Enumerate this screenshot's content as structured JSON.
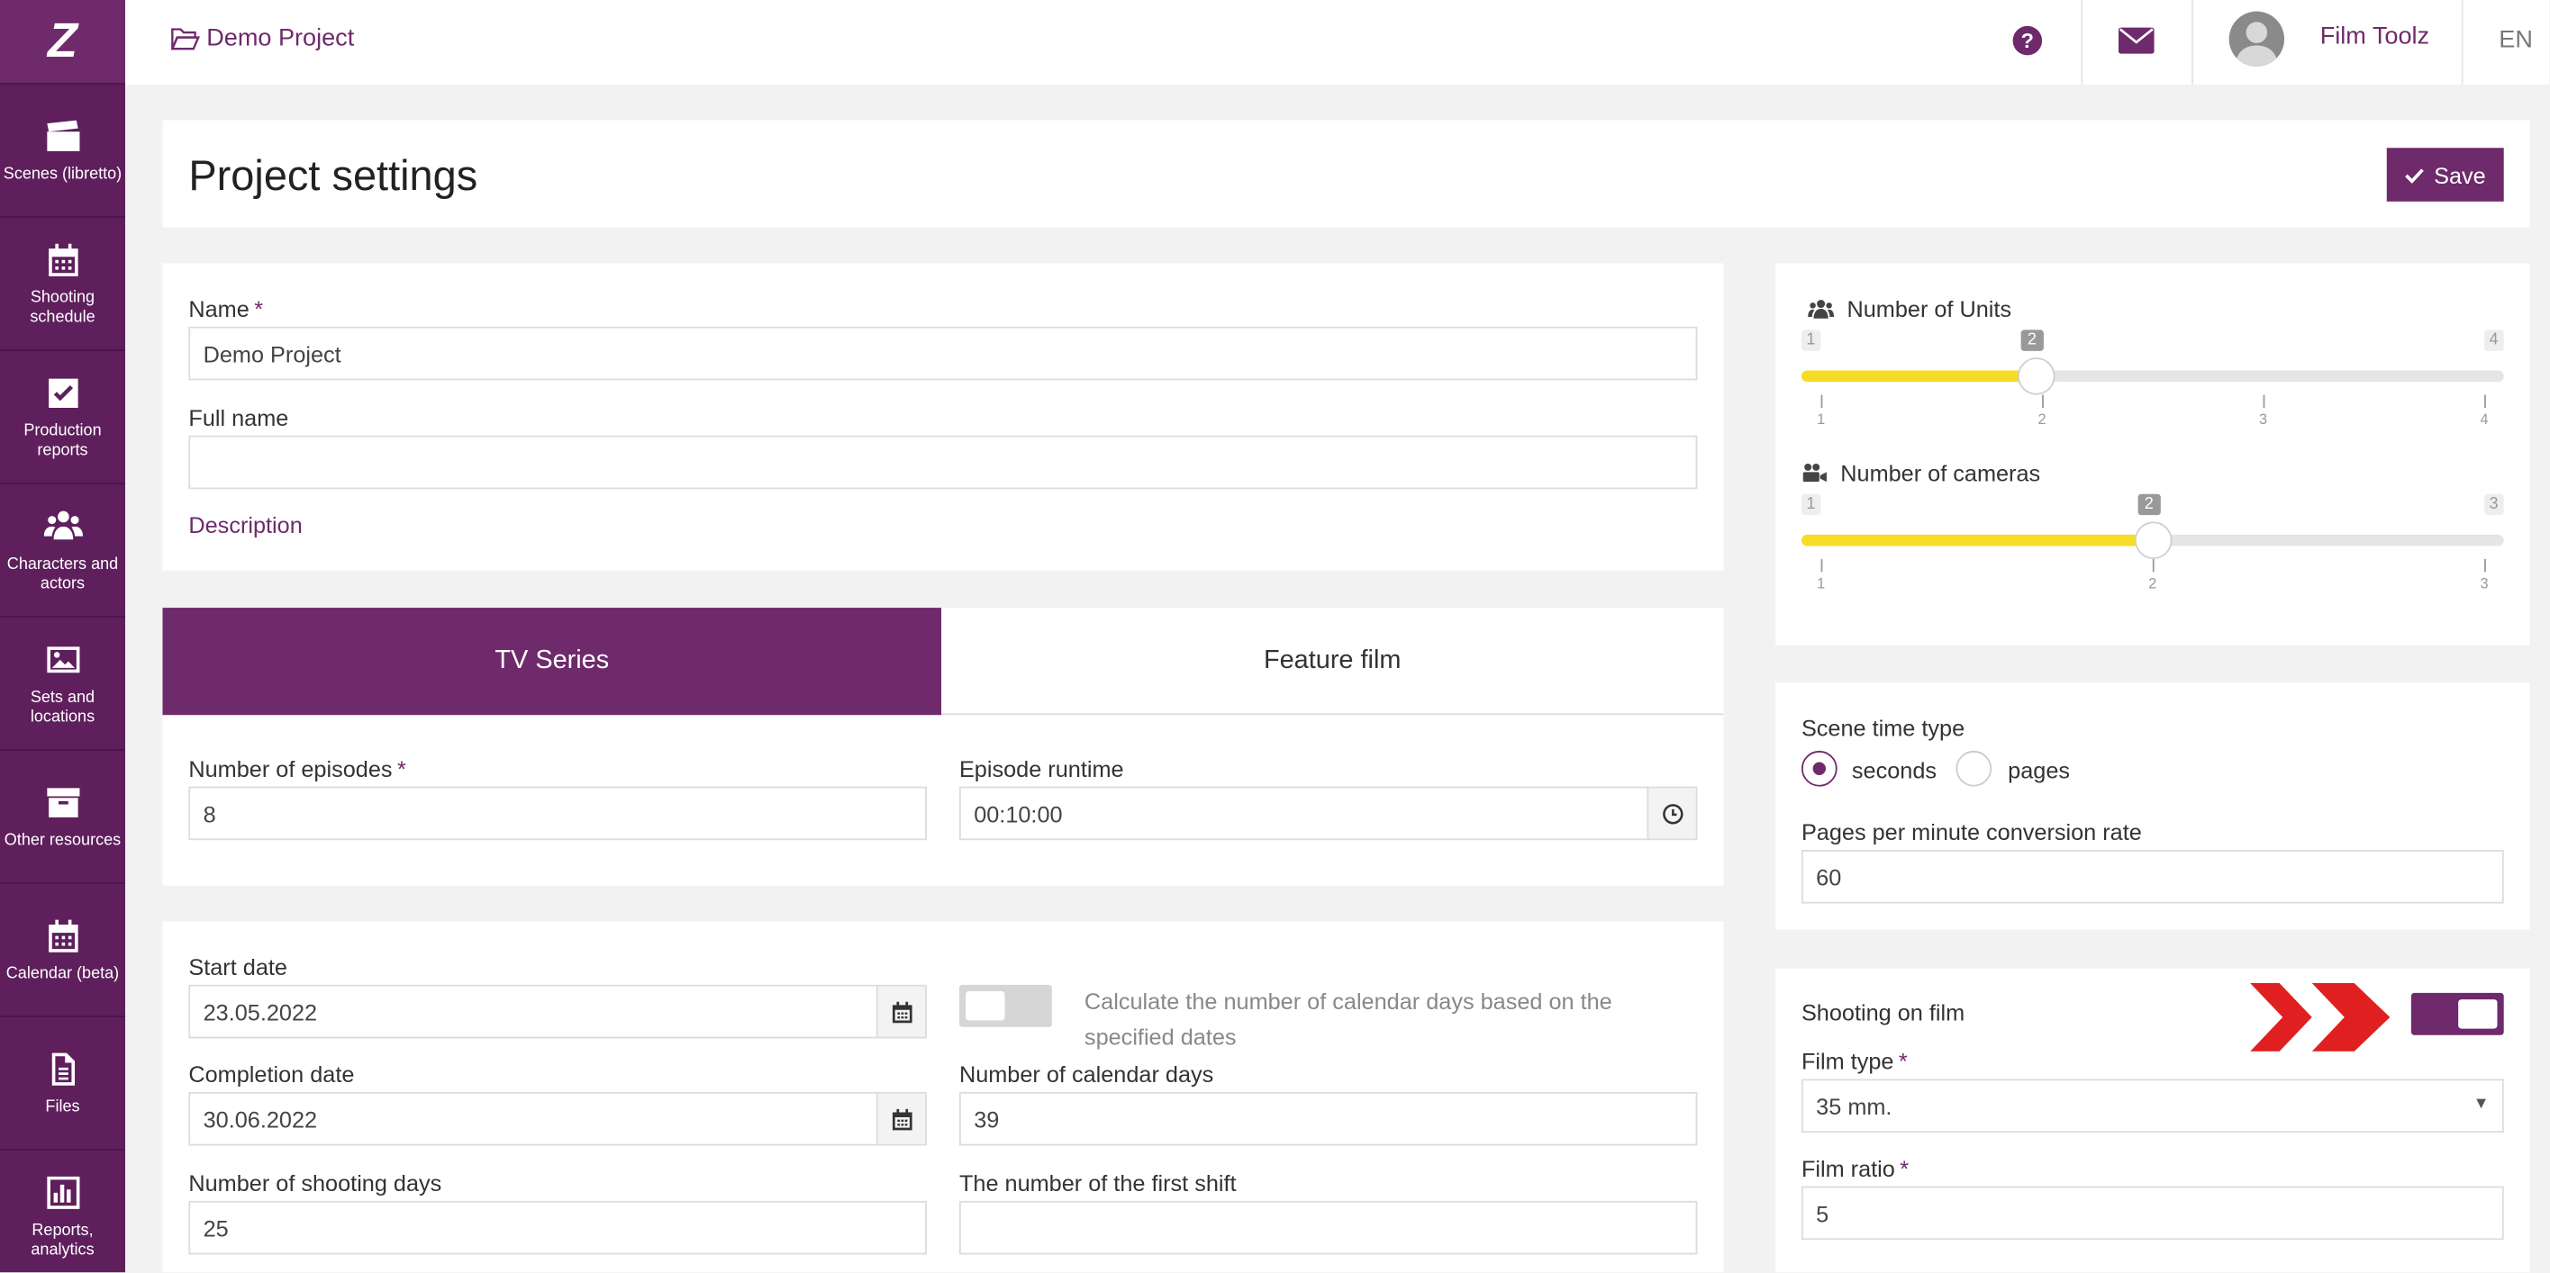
{
  "sidebar": {
    "logo": "Z",
    "items": [
      {
        "label": "Scenes (libretto)",
        "icon": "clapperboard-icon"
      },
      {
        "label": "Shooting schedule",
        "icon": "calendar-icon"
      },
      {
        "label": "Production reports",
        "icon": "checkbox-icon"
      },
      {
        "label": "Characters and actors",
        "icon": "people-icon"
      },
      {
        "label": "Sets and locations",
        "icon": "image-icon"
      },
      {
        "label": "Other resources",
        "icon": "archive-box-icon"
      },
      {
        "label": "Calendar (beta)",
        "icon": "calendar-icon"
      },
      {
        "label": "Files",
        "icon": "file-icon"
      },
      {
        "label": "Reports, analytics",
        "icon": "bar-chart-icon"
      }
    ]
  },
  "topbar": {
    "project": "Demo Project",
    "user": "Film Toolz",
    "lang": "EN"
  },
  "page": {
    "title": "Project settings",
    "save": "Save"
  },
  "basics": {
    "name_label": "Name",
    "name_value": "Demo Project",
    "fullname_label": "Full name",
    "fullname_value": "",
    "description_link": "Description"
  },
  "tabs": [
    {
      "label": "TV Series",
      "active": true
    },
    {
      "label": "Feature film",
      "active": false
    }
  ],
  "series": {
    "episodes_label": "Number of episodes",
    "episodes_value": "8",
    "runtime_label": "Episode runtime",
    "runtime_value": "00:10:00"
  },
  "dates": {
    "start_label": "Start date",
    "start_value": "23.05.2022",
    "toggle_text": "Calculate the number of calendar days based on the specified dates",
    "toggle_on": false,
    "completion_label": "Completion date",
    "completion_value": "30.06.2022",
    "calendar_days_label": "Number of calendar days",
    "calendar_days_value": "39",
    "shooting_days_label": "Number of shooting days",
    "shooting_days_value": "25",
    "first_shift_label": "The number of the first shift",
    "first_shift_value": ""
  },
  "units": {
    "title": "Number of Units",
    "min": "1",
    "max": "4",
    "current": "2",
    "ticks": [
      "1",
      "2",
      "3",
      "4"
    ]
  },
  "cameras": {
    "title": "Number of cameras",
    "min": "1",
    "max": "3",
    "current": "2",
    "ticks": [
      "1",
      "2",
      "3"
    ]
  },
  "scene_time": {
    "label": "Scene time type",
    "option_seconds": "seconds",
    "option_pages": "pages",
    "selected": "seconds",
    "ppm_label": "Pages per minute conversion rate",
    "ppm_value": "60"
  },
  "film": {
    "shooting_label": "Shooting on film",
    "shooting_on": true,
    "type_label": "Film type",
    "type_value": "35 mm.",
    "ratio_label": "Film ratio",
    "ratio_value": "5"
  },
  "colors": {
    "brand": "#6e2a6b",
    "sidebar": "#5e1f5c",
    "slider_fill": "#f6dc24",
    "arrow": "#e02020"
  }
}
